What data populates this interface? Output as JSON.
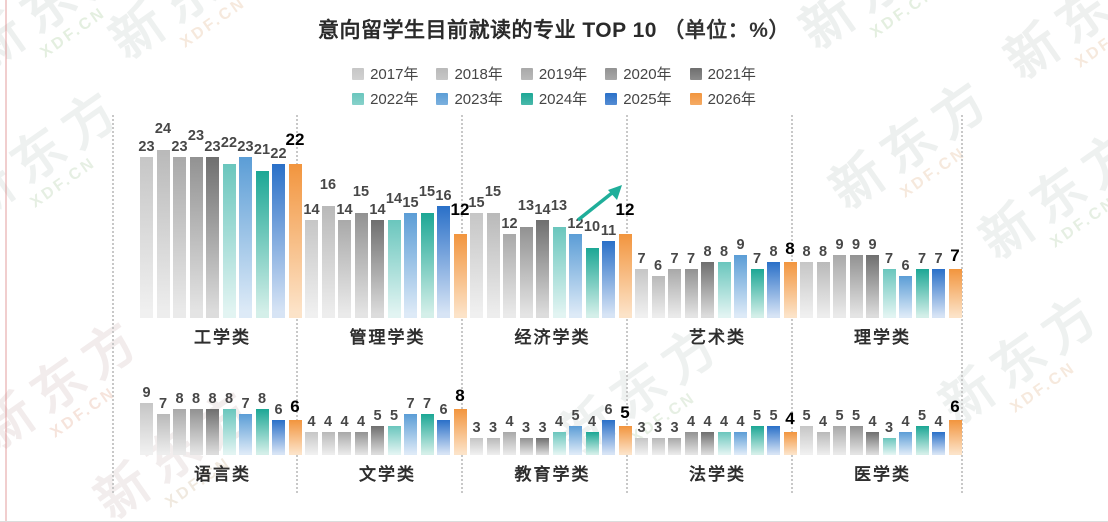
{
  "page": {
    "background": "#ffffff"
  },
  "header": {
    "title_main": "意向留学生目前就读的专业 TOP 10",
    "title_unit": "（单位：%）"
  },
  "watermark": {
    "brand": "新东方",
    "domain": "XDF.CN"
  },
  "chart_data": {
    "type": "bar",
    "title": "意向留学生目前就读的专业 TOP 10",
    "unit_label": "（单位：%）",
    "legend_position": "top",
    "grid": false,
    "value_labels": true,
    "highlight_last_series": true,
    "series_labels": [
      "2017年",
      "2018年",
      "2019年",
      "2020年",
      "2021年",
      "2022年",
      "2023年",
      "2024年",
      "2025年",
      "2026年"
    ],
    "series_colors": [
      "#c6c6c6",
      "#b9b9b9",
      "#a9a9a9",
      "#929292",
      "#6f6f6f",
      "#6ac6bd",
      "#5b9dd6",
      "#1ca795",
      "#2a70c8",
      "#f2953e"
    ],
    "series_colors_fade": [
      "#f0f0f0",
      "#ededed",
      "#eaeaea",
      "#e4e4e4",
      "#dcdcdc",
      "#e2f4f2",
      "#ddeaf7",
      "#d4efe9",
      "#d7e4f5",
      "#fce3c8"
    ],
    "annotation_color": "#1fae9a",
    "groups": [
      {
        "category": "工学类",
        "values": [
          23,
          24,
          23,
          23,
          23,
          22,
          23,
          21,
          22,
          22
        ]
      },
      {
        "category": "管理学类",
        "values": [
          14,
          16,
          14,
          15,
          14,
          14,
          15,
          15,
          16,
          12
        ]
      },
      {
        "category": "经济学类",
        "values": [
          15,
          15,
          12,
          13,
          14,
          13,
          12,
          10,
          11,
          12
        ],
        "annotation": "trend-up-arrow"
      },
      {
        "category": "艺术类",
        "values": [
          7,
          6,
          7,
          7,
          8,
          8,
          9,
          7,
          8,
          8
        ]
      },
      {
        "category": "理学类",
        "values": [
          8,
          8,
          9,
          9,
          9,
          7,
          6,
          7,
          7,
          7
        ]
      },
      {
        "category": "语言类",
        "values": [
          9,
          7,
          8,
          8,
          8,
          8,
          7,
          8,
          6,
          6
        ]
      },
      {
        "category": "文学类",
        "values": [
          4,
          4,
          4,
          4,
          5,
          5,
          7,
          7,
          6,
          8
        ]
      },
      {
        "category": "教育学类",
        "values": [
          3,
          3,
          4,
          3,
          3,
          4,
          5,
          4,
          6,
          5
        ]
      },
      {
        "category": "法学类",
        "values": [
          3,
          3,
          3,
          4,
          4,
          4,
          4,
          5,
          5,
          4
        ]
      },
      {
        "category": "医学类",
        "values": [
          5,
          4,
          5,
          5,
          4,
          3,
          4,
          5,
          4,
          6
        ]
      }
    ]
  }
}
